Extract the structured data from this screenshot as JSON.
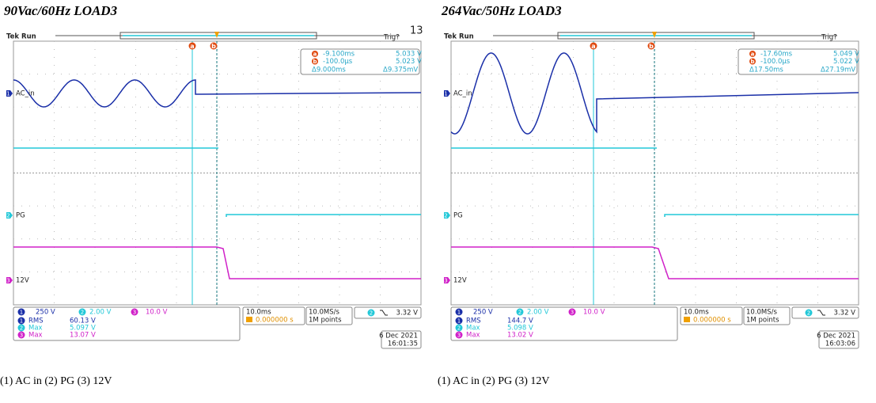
{
  "panels": [
    {
      "title": "90Vac/60Hz LOAD3",
      "status": "Tek Run",
      "trigger_state": "Trig?",
      "corner_number": "13",
      "cursors": [
        {
          "letter": "a",
          "time": "-9.100ms",
          "volts": "5.033 V"
        },
        {
          "letter": "b",
          "time": "-100.0µs",
          "volts": "5.023 V"
        }
      ],
      "delta": {
        "time": "Δ9.000ms",
        "volts": "Δ9.375mV"
      },
      "channels": [
        {
          "number": "1",
          "label": "AC_in",
          "scale": "250 V",
          "measurement": "RMS",
          "reading": "60.13 V"
        },
        {
          "number": "2",
          "label": "PG",
          "scale": "2.00 V",
          "measurement": "Max",
          "reading": "5.097 V"
        },
        {
          "number": "3",
          "label": "12V",
          "scale": "10.0 V",
          "measurement": "Max",
          "reading": "13.07 V"
        }
      ],
      "timebase": "10.0ms",
      "delay": "0.000000 s",
      "sample_rate": "10.0MS/s",
      "record_length": "1M points",
      "trigger_channel": "2",
      "trigger_level": "3.32 V",
      "date": "6 Dec 2021",
      "time": "16:01:35",
      "caption": "(1) AC in (2) PG (3) 12V"
    },
    {
      "title": "264Vac/50Hz LOAD3",
      "status": "Tek Run",
      "trigger_state": "Trig?",
      "cursors": [
        {
          "letter": "a",
          "time": "-17.60ms",
          "volts": "5.049 V"
        },
        {
          "letter": "b",
          "time": "-100.0µs",
          "volts": "5.022 V"
        }
      ],
      "delta": {
        "time": "Δ17.50ms",
        "volts": "Δ27.19mV"
      },
      "channels": [
        {
          "number": "1",
          "label": "AC_in",
          "scale": "250 V",
          "measurement": "RMS",
          "reading": "144.7 V"
        },
        {
          "number": "2",
          "label": "PG",
          "scale": "2.00 V",
          "measurement": "Max",
          "reading": "5.098 V"
        },
        {
          "number": "3",
          "label": "12V",
          "scale": "10.0 V",
          "measurement": "Max",
          "reading": "13.02 V"
        }
      ],
      "timebase": "10.0ms",
      "delay": "0.000000 s",
      "sample_rate": "10.0MS/s",
      "record_length": "1M points",
      "trigger_channel": "2",
      "trigger_level": "3.32 V",
      "date": "6 Dec 2021",
      "time": "16:03:06",
      "caption": "(1) AC in (2) PG (3) 12V"
    }
  ]
}
